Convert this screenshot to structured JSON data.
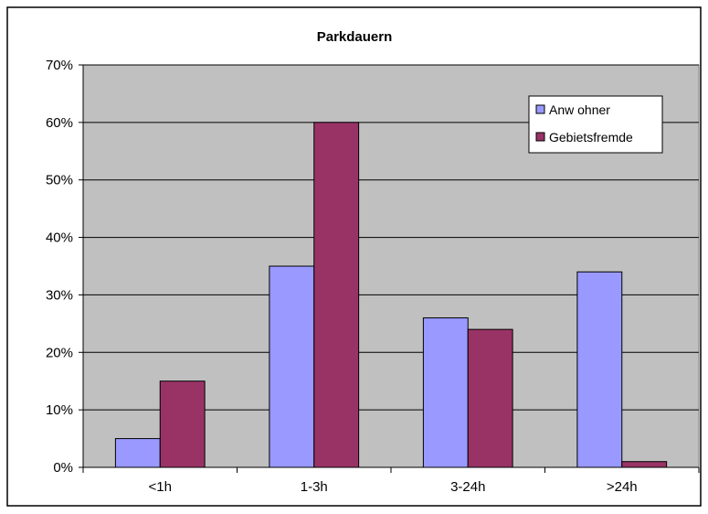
{
  "chart_data": {
    "type": "bar",
    "title": "Parkdauern",
    "xlabel": "",
    "ylabel": "",
    "categories": [
      "<1h",
      "1-3h",
      "3-24h",
      ">24h"
    ],
    "series": [
      {
        "name": "Anw ohner",
        "values": [
          5,
          35,
          26,
          34
        ],
        "color": "#9999ff"
      },
      {
        "name": "Gebietsfremde",
        "values": [
          15,
          60,
          24,
          1
        ],
        "color": "#993366"
      }
    ],
    "ylim": [
      0,
      70
    ],
    "yticks": [
      "0%",
      "10%",
      "20%",
      "30%",
      "40%",
      "50%",
      "60%",
      "70%"
    ],
    "grid": true,
    "legend_position": "top-right",
    "plot_background": "#c0c0c0"
  }
}
